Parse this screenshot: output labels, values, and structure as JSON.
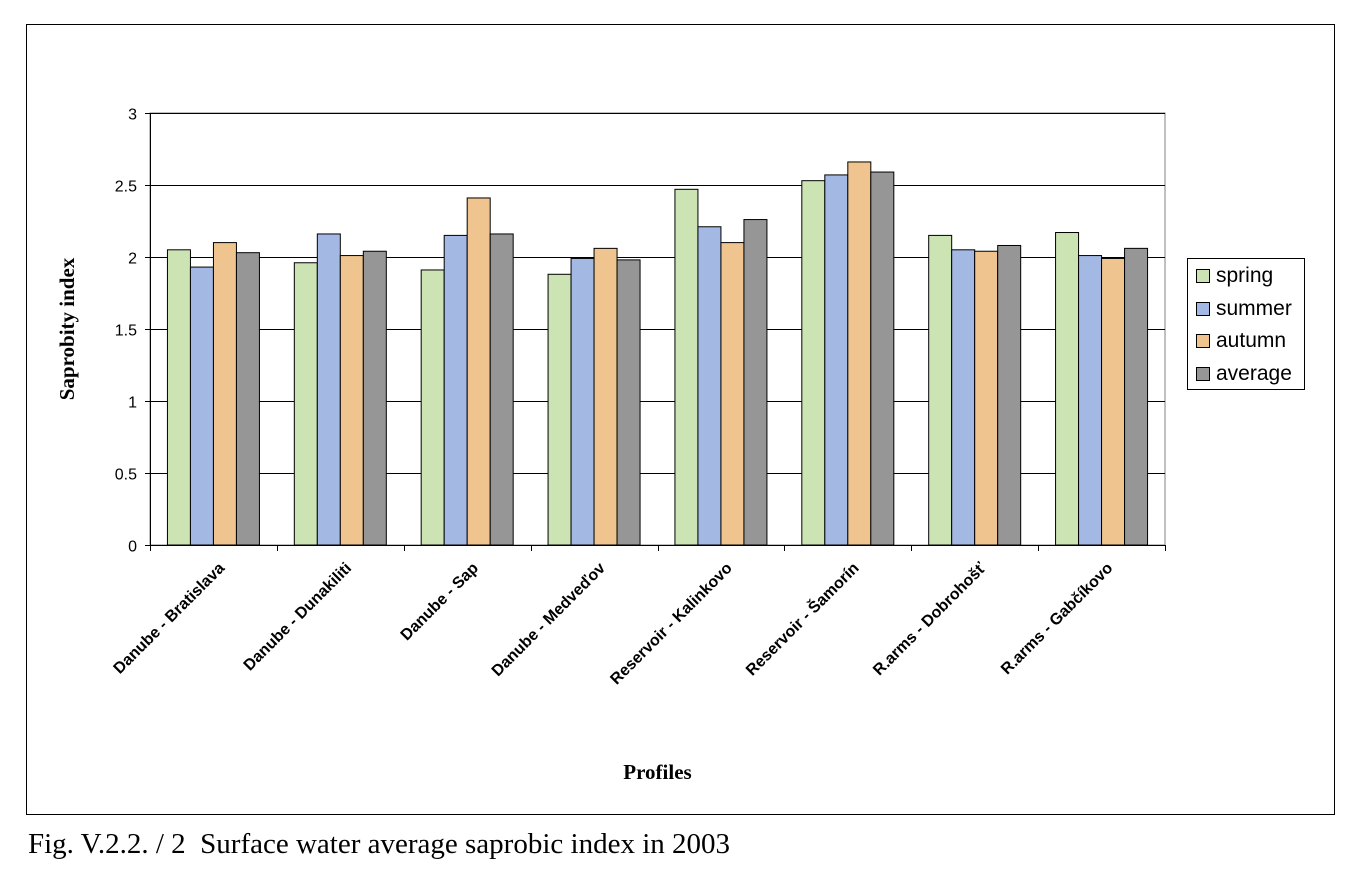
{
  "chart_data": {
    "type": "bar",
    "ylabel": "Saprobity index",
    "xlabel": "Profiles",
    "ylim": [
      0,
      3
    ],
    "yticks": [
      "0",
      "0.5",
      "1",
      "1.5",
      "2",
      "2.5",
      "3"
    ],
    "grid": true,
    "legend_position": "right",
    "categories": [
      "Danube - Bratislava",
      "Danube - Dunakiliti",
      "Danube - Sap",
      "Danube - Medveďov",
      "Reservoir - Kalinkovo",
      "Reservoir - Šamorín",
      "R.arms - Dobrohošť",
      "R.arms - Gabčíkovo"
    ],
    "series": [
      {
        "name": "spring",
        "color": "#cce3b4",
        "values": [
          2.05,
          1.96,
          1.91,
          1.88,
          2.47,
          2.53,
          2.15,
          2.17
        ]
      },
      {
        "name": "summer",
        "color": "#a4b8e4",
        "values": [
          1.93,
          2.16,
          2.15,
          1.99,
          2.21,
          2.57,
          2.05,
          2.01
        ]
      },
      {
        "name": "autumn",
        "color": "#efc48e",
        "values": [
          2.1,
          2.01,
          2.41,
          2.06,
          2.1,
          2.66,
          2.04,
          1.99
        ]
      },
      {
        "name": "average",
        "color": "#969696",
        "values": [
          2.03,
          2.04,
          2.16,
          1.98,
          2.26,
          2.59,
          2.08,
          2.06
        ]
      }
    ]
  },
  "caption": "Fig. V.2.2. / 2  Surface water average saprobic index in 2003"
}
